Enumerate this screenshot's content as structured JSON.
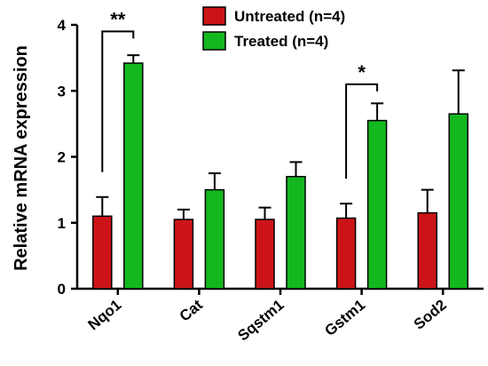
{
  "chart_data": {
    "type": "bar",
    "title": "",
    "xlabel": "",
    "ylabel": "Relative mRNA expression",
    "ylim": [
      0,
      4
    ],
    "yticks": [
      0,
      1,
      2,
      3,
      4
    ],
    "categories": [
      "Nqo1",
      "Cat",
      "Sqstm1",
      "Gstm1",
      "Sod2"
    ],
    "series": [
      {
        "name": "Untreated (n=4)",
        "color": "#cc1418",
        "values": [
          1.1,
          1.05,
          1.05,
          1.07,
          1.15
        ],
        "errors": [
          0.29,
          0.15,
          0.18,
          0.22,
          0.35
        ]
      },
      {
        "name": "Treated (n=4)",
        "color": "#12b81e",
        "values": [
          3.42,
          1.5,
          1.7,
          2.55,
          2.65
        ],
        "errors": [
          0.12,
          0.25,
          0.22,
          0.26,
          0.66
        ]
      }
    ],
    "significance": [
      {
        "category": "Nqo1",
        "label": "**",
        "bracket_y": 3.9
      },
      {
        "category": "Gstm1",
        "label": "*",
        "bracket_y": 3.1
      }
    ],
    "legend_position": "top-right",
    "grid": false
  }
}
